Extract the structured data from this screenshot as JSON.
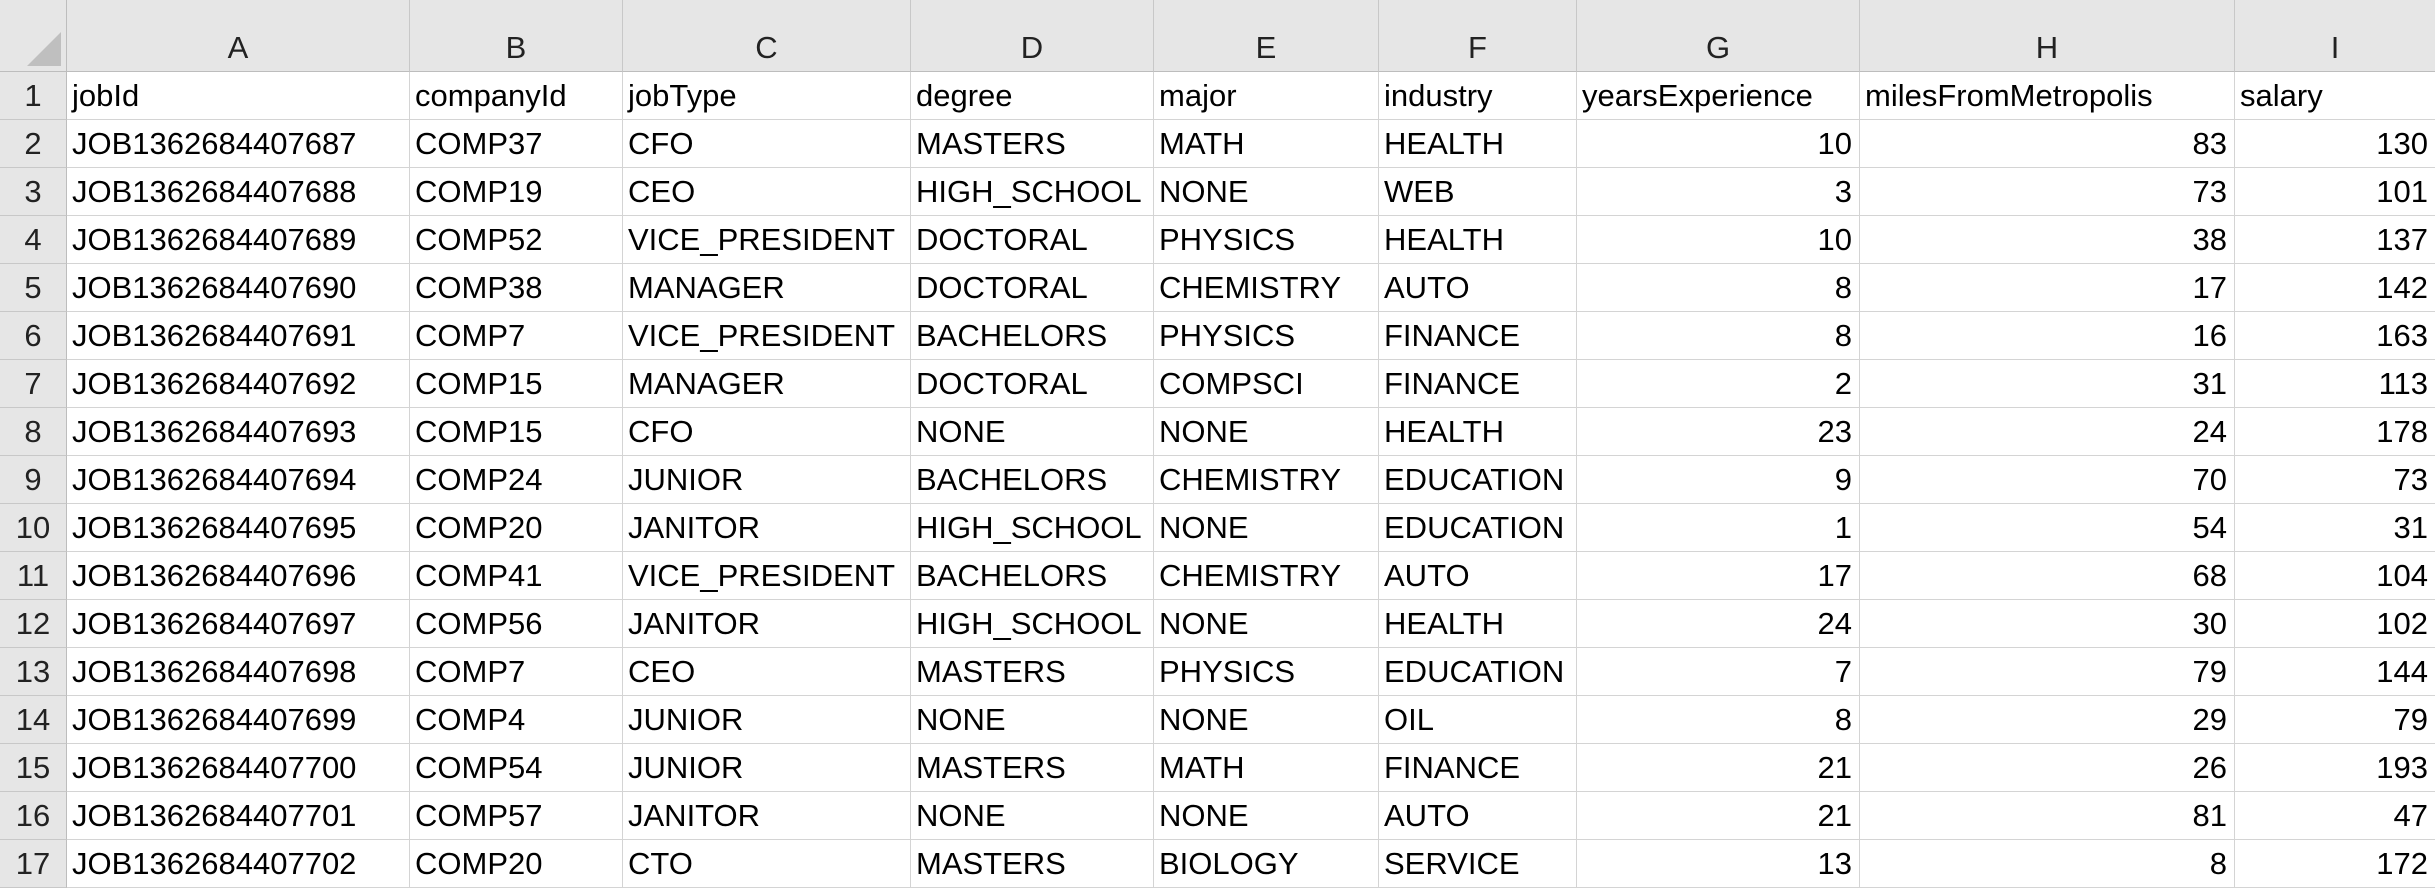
{
  "columns": [
    "A",
    "B",
    "C",
    "D",
    "E",
    "F",
    "G",
    "H",
    "I"
  ],
  "rows": [
    {
      "num": "1",
      "cells": [
        "jobId",
        "companyId",
        "jobType",
        "degree",
        "major",
        "industry",
        "yearsExperience",
        "milesFromMetropolis",
        "salary"
      ]
    },
    {
      "num": "2",
      "cells": [
        "JOB1362684407687",
        "COMP37",
        "CFO",
        "MASTERS",
        "MATH",
        "HEALTH",
        "10",
        "83",
        "130"
      ]
    },
    {
      "num": "3",
      "cells": [
        "JOB1362684407688",
        "COMP19",
        "CEO",
        "HIGH_SCHOOL",
        "NONE",
        "WEB",
        "3",
        "73",
        "101"
      ]
    },
    {
      "num": "4",
      "cells": [
        "JOB1362684407689",
        "COMP52",
        "VICE_PRESIDENT",
        "DOCTORAL",
        "PHYSICS",
        "HEALTH",
        "10",
        "38",
        "137"
      ]
    },
    {
      "num": "5",
      "cells": [
        "JOB1362684407690",
        "COMP38",
        "MANAGER",
        "DOCTORAL",
        "CHEMISTRY",
        "AUTO",
        "8",
        "17",
        "142"
      ]
    },
    {
      "num": "6",
      "cells": [
        "JOB1362684407691",
        "COMP7",
        "VICE_PRESIDENT",
        "BACHELORS",
        "PHYSICS",
        "FINANCE",
        "8",
        "16",
        "163"
      ]
    },
    {
      "num": "7",
      "cells": [
        "JOB1362684407692",
        "COMP15",
        "MANAGER",
        "DOCTORAL",
        "COMPSCI",
        "FINANCE",
        "2",
        "31",
        "113"
      ]
    },
    {
      "num": "8",
      "cells": [
        "JOB1362684407693",
        "COMP15",
        "CFO",
        "NONE",
        "NONE",
        "HEALTH",
        "23",
        "24",
        "178"
      ]
    },
    {
      "num": "9",
      "cells": [
        "JOB1362684407694",
        "COMP24",
        "JUNIOR",
        "BACHELORS",
        "CHEMISTRY",
        "EDUCATION",
        "9",
        "70",
        "73"
      ]
    },
    {
      "num": "10",
      "cells": [
        "JOB1362684407695",
        "COMP20",
        "JANITOR",
        "HIGH_SCHOOL",
        "NONE",
        "EDUCATION",
        "1",
        "54",
        "31"
      ]
    },
    {
      "num": "11",
      "cells": [
        "JOB1362684407696",
        "COMP41",
        "VICE_PRESIDENT",
        "BACHELORS",
        "CHEMISTRY",
        "AUTO",
        "17",
        "68",
        "104"
      ]
    },
    {
      "num": "12",
      "cells": [
        "JOB1362684407697",
        "COMP56",
        "JANITOR",
        "HIGH_SCHOOL",
        "NONE",
        "HEALTH",
        "24",
        "30",
        "102"
      ]
    },
    {
      "num": "13",
      "cells": [
        "JOB1362684407698",
        "COMP7",
        "CEO",
        "MASTERS",
        "PHYSICS",
        "EDUCATION",
        "7",
        "79",
        "144"
      ]
    },
    {
      "num": "14",
      "cells": [
        "JOB1362684407699",
        "COMP4",
        "JUNIOR",
        "NONE",
        "NONE",
        "OIL",
        "8",
        "29",
        "79"
      ]
    },
    {
      "num": "15",
      "cells": [
        "JOB1362684407700",
        "COMP54",
        "JUNIOR",
        "MASTERS",
        "MATH",
        "FINANCE",
        "21",
        "26",
        "193"
      ]
    },
    {
      "num": "16",
      "cells": [
        "JOB1362684407701",
        "COMP57",
        "JANITOR",
        "NONE",
        "NONE",
        "AUTO",
        "21",
        "81",
        "47"
      ]
    },
    {
      "num": "17",
      "cells": [
        "JOB1362684407702",
        "COMP20",
        "CTO",
        "MASTERS",
        "BIOLOGY",
        "SERVICE",
        "13",
        "8",
        "172"
      ]
    }
  ],
  "colors": {
    "header_bg": "#e6e6e6",
    "gridline": "#d4d4d4",
    "cell_bg": "#ffffff"
  }
}
